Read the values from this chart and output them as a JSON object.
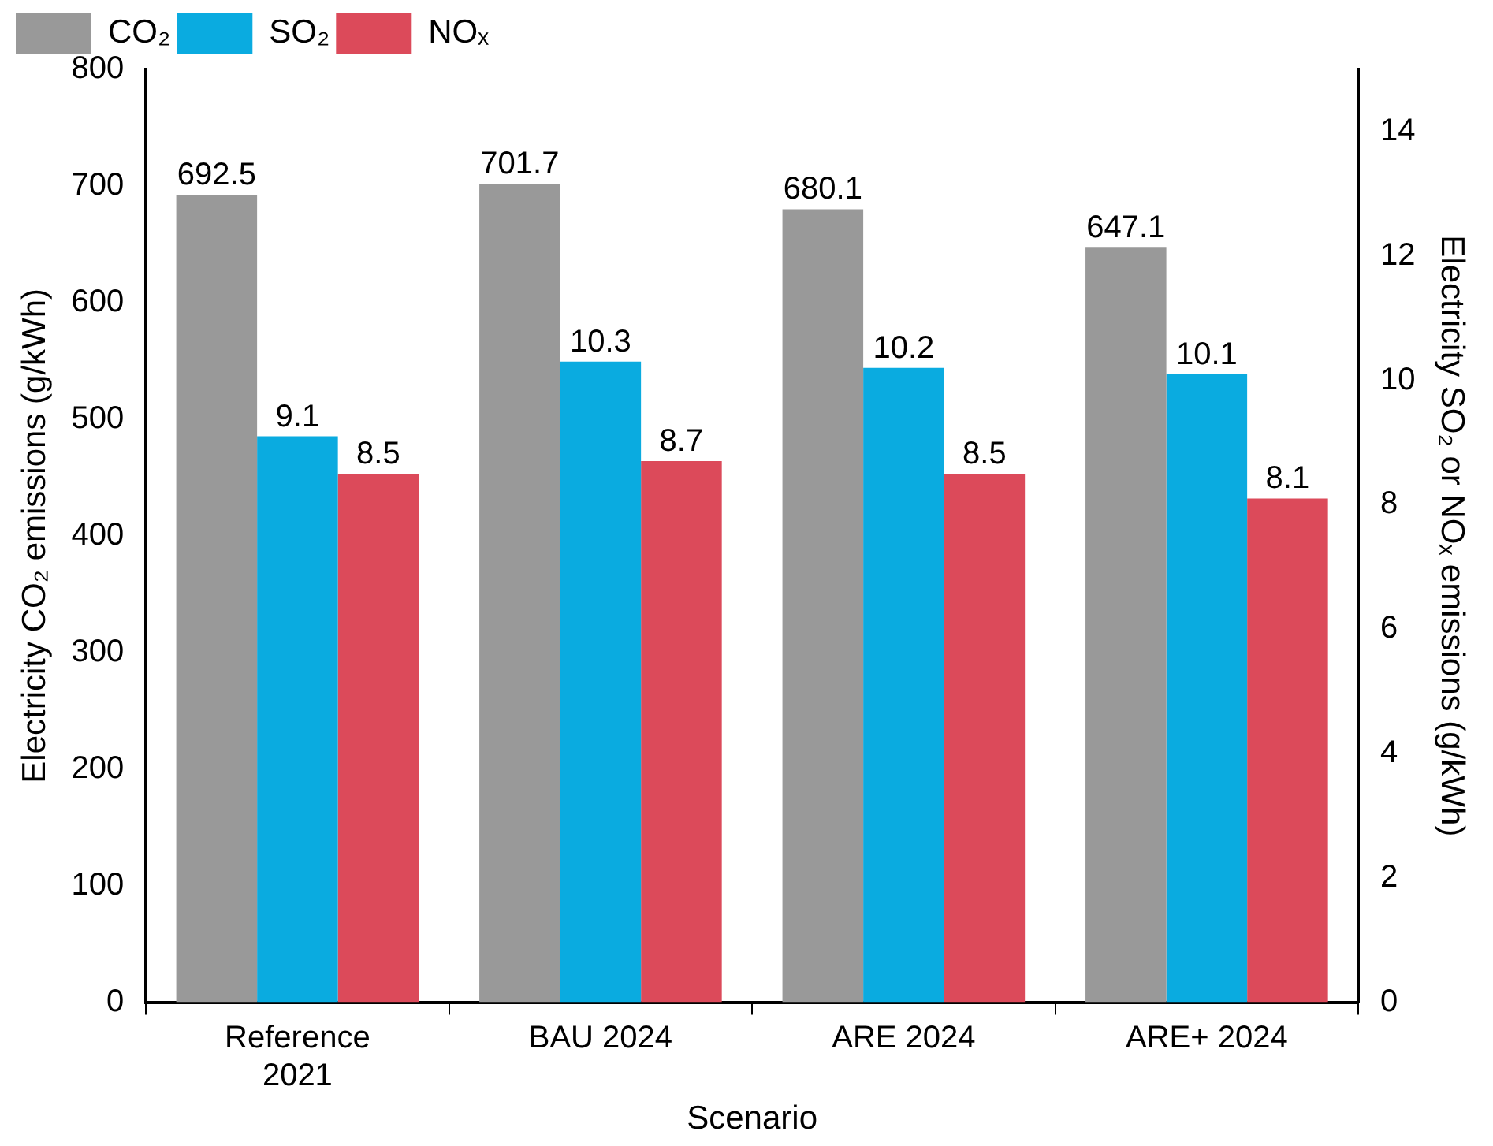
{
  "chart_data": {
    "type": "bar",
    "xlabel": "Scenario",
    "ylabel": "Electricity CO₂ emissions (g/kWh)",
    "y2label": "Electricity SO₂ or NOₓ emissions (g/kWh)",
    "categories": [
      "Reference 2021",
      "BAU 2024",
      "ARE 2024",
      "ARE+ 2024"
    ],
    "series": [
      {
        "name": "CO₂",
        "color": "#999999",
        "values": [
          692.5,
          701.7,
          680.1,
          647.1
        ]
      },
      {
        "name": "SO₂",
        "color": "#0aabe0",
        "values": [
          9.1,
          10.3,
          10.2,
          10.1
        ],
        "axis": "y2"
      },
      {
        "name": "NOₓ",
        "color": "#dc4a5a",
        "values": [
          8.5,
          8.7,
          8.5,
          8.1
        ],
        "axis": "y2"
      }
    ],
    "ylim": [
      0,
      800
    ],
    "yticks": [
      0,
      100,
      200,
      300,
      400,
      500,
      600,
      700,
      800
    ],
    "y2lim": [
      0,
      15
    ],
    "y2ticks": [
      0,
      2,
      4,
      6,
      8,
      10,
      12,
      14
    ],
    "grid": false,
    "legend": "top left",
    "data_labels": true
  }
}
